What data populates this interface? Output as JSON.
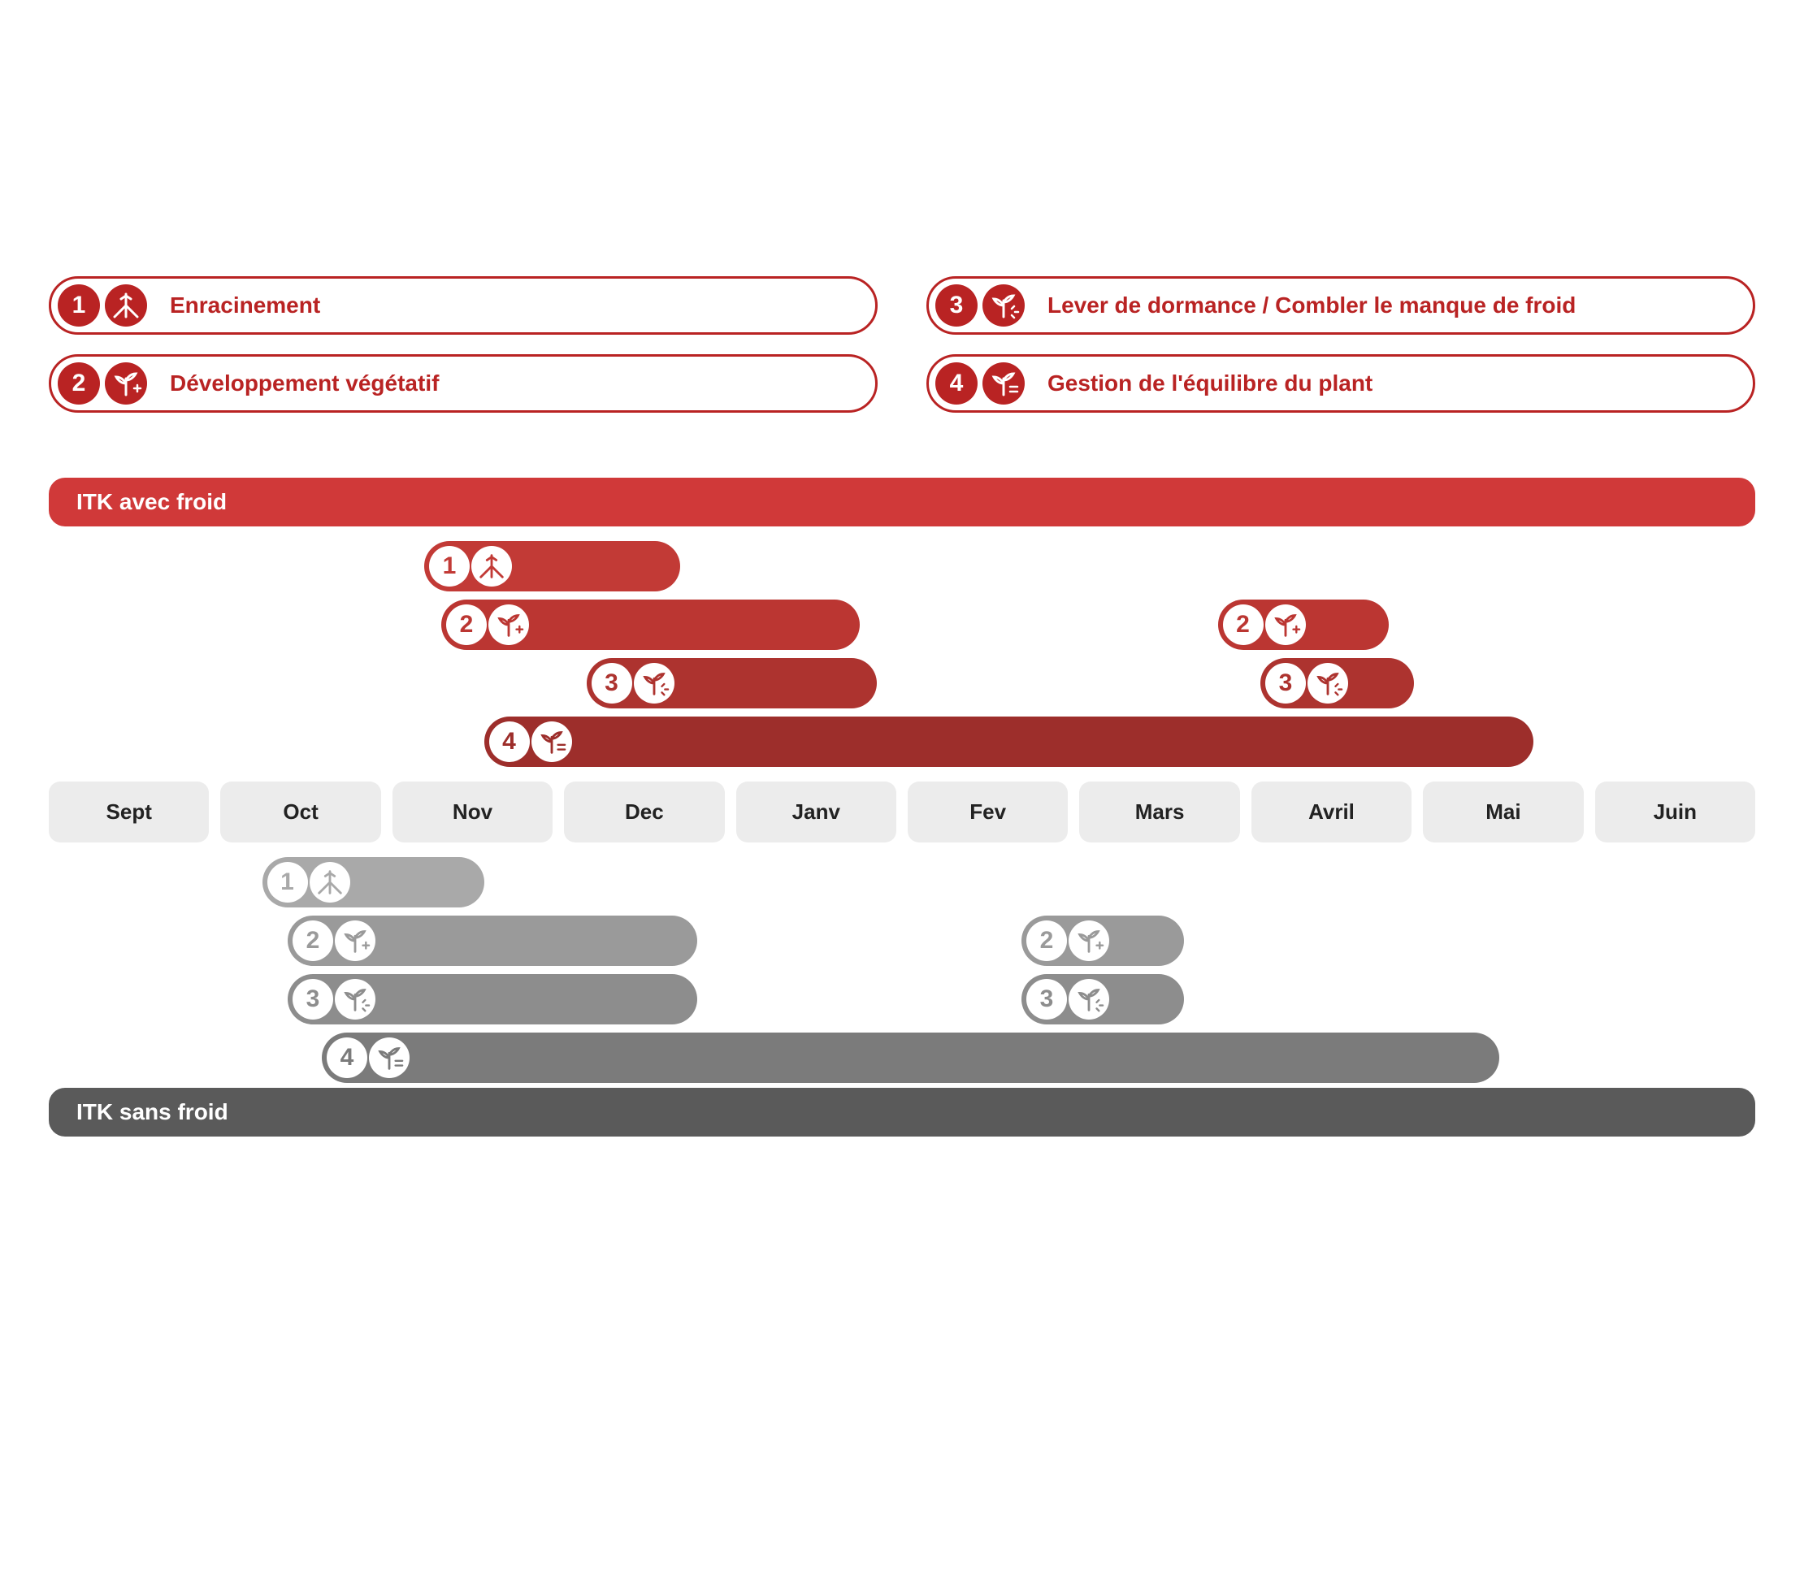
{
  "colors": {
    "accent": "#b92323",
    "month_bg": "#ececec",
    "header_top": "#d03939",
    "header_bottom": "#5a5a5a",
    "bar_top1": "#c23a36",
    "bar_top2": "#b63531",
    "bar_top3": "#a8322f",
    "bar_top4": "#9d2e2b",
    "bar_bot1": "#a9a9a9",
    "bar_bot2": "#979797",
    "bar_bot3": "#8d8d8d",
    "bar_bot4": "#7b7b7b"
  },
  "legend": {
    "items": [
      {
        "num": "1",
        "label": "Enracinement",
        "icon": "roots"
      },
      {
        "num": "2",
        "label": "Développement végétatif",
        "icon": "sprout-plus"
      },
      {
        "num": "3",
        "label": "Lever de dormance / Combler le manque de froid",
        "icon": "sprout-spark"
      },
      {
        "num": "4",
        "label": "Gestion de l'équilibre du plant",
        "icon": "sprout-equal"
      }
    ]
  },
  "months": [
    "Sept",
    "Oct",
    "Nov",
    "Dec",
    "Janv",
    "Fev",
    "Mars",
    "Avril",
    "Mai",
    "Juin"
  ],
  "month_count": 10,
  "sections": {
    "top": {
      "title": "ITK avec froid",
      "header_color": "#d03939",
      "rows": [
        {
          "bars": [
            {
              "num": "1",
              "icon": "roots",
              "start": 2.2,
              "end": 3.7,
              "color": "#c23a36"
            }
          ]
        },
        {
          "bars": [
            {
              "num": "2",
              "icon": "sprout-plus",
              "start": 2.3,
              "end": 4.75,
              "color": "#bb3632"
            },
            {
              "num": "2",
              "icon": "sprout-plus",
              "start": 6.85,
              "end": 7.85,
              "color": "#bb3632"
            }
          ]
        },
        {
          "bars": [
            {
              "num": "3",
              "icon": "sprout-spark",
              "start": 3.15,
              "end": 4.85,
              "color": "#ad332f"
            },
            {
              "num": "3",
              "icon": "sprout-spark",
              "start": 7.1,
              "end": 8.0,
              "color": "#ad332f"
            }
          ]
        },
        {
          "bars": [
            {
              "num": "4",
              "icon": "sprout-equal",
              "start": 2.55,
              "end": 8.7,
              "color": "#9d2e2b"
            }
          ]
        }
      ]
    },
    "bottom": {
      "title": "ITK sans froid",
      "header_color": "#5a5a5a",
      "rows": [
        {
          "bars": [
            {
              "num": "1",
              "icon": "roots",
              "start": 1.25,
              "end": 2.55,
              "color": "#a9a9a9"
            }
          ]
        },
        {
          "bars": [
            {
              "num": "2",
              "icon": "sprout-plus",
              "start": 1.4,
              "end": 3.8,
              "color": "#9a9a9a"
            },
            {
              "num": "2",
              "icon": "sprout-plus",
              "start": 5.7,
              "end": 6.65,
              "color": "#9a9a9a"
            }
          ]
        },
        {
          "bars": [
            {
              "num": "3",
              "icon": "sprout-spark",
              "start": 1.4,
              "end": 3.8,
              "color": "#8d8d8d"
            },
            {
              "num": "3",
              "icon": "sprout-spark",
              "start": 5.7,
              "end": 6.65,
              "color": "#8d8d8d"
            }
          ]
        },
        {
          "bars": [
            {
              "num": "4",
              "icon": "sprout-equal",
              "start": 1.6,
              "end": 8.5,
              "color": "#7b7b7b"
            }
          ]
        }
      ]
    }
  },
  "typography": {
    "legend_label": 28,
    "section_header": 28,
    "month_label": 26,
    "badge_number": 30
  }
}
